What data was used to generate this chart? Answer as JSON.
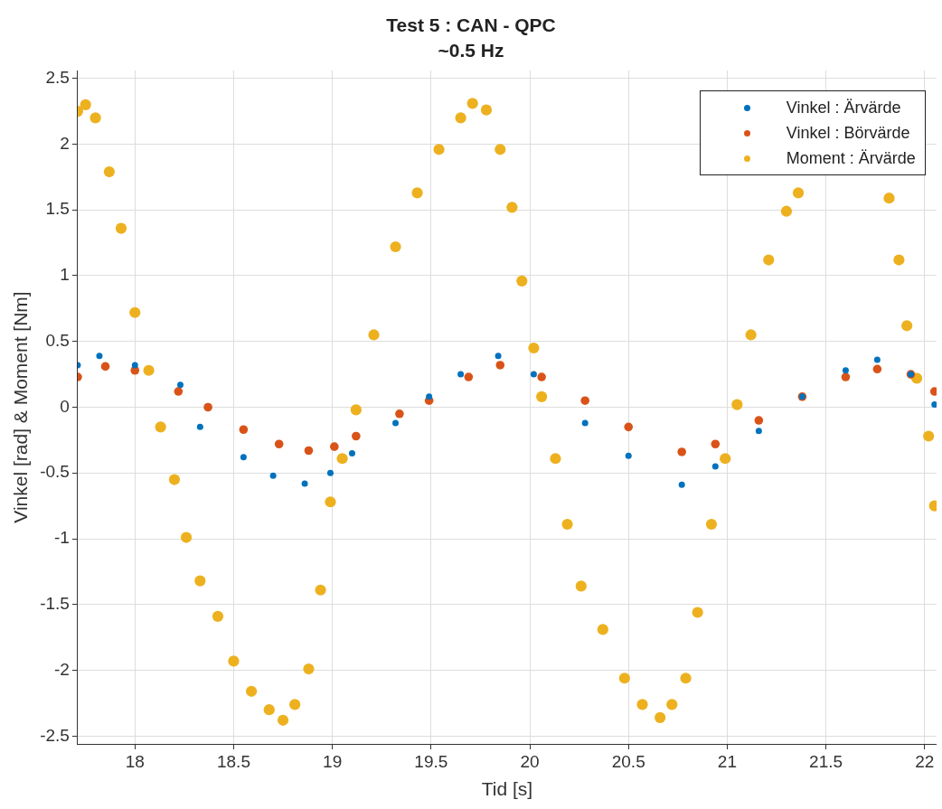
{
  "chart_data": {
    "type": "scatter",
    "title": "Test 5 : CAN - QPC",
    "subtitle": "~0.5 Hz",
    "xlabel": "Tid [s]",
    "ylabel": "Vinkel [rad] & Moment [Nm]",
    "xlim": [
      17.71,
      22.06
    ],
    "xticks": [
      18,
      18.5,
      19,
      19.5,
      20,
      20.5,
      21,
      21.5,
      22
    ],
    "ylim": [
      -2.56,
      2.56
    ],
    "yticks": [
      -2.5,
      -2,
      -1.5,
      -1,
      -0.5,
      0,
      0.5,
      1,
      1.5,
      2,
      2.5
    ],
    "grid": true,
    "legend": "top right",
    "marker": "circle",
    "series": [
      {
        "name": "Vinkel : Ärvärde",
        "color": "#0072bd",
        "x": [
          17.71,
          17.82,
          18.0,
          18.23,
          18.33,
          18.55,
          18.7,
          18.86,
          18.99,
          19.1,
          19.32,
          19.49,
          19.65,
          19.84,
          20.02,
          20.28,
          20.5,
          20.77,
          20.94,
          21.16,
          21.38,
          21.6,
          21.76,
          21.93,
          22.05
        ],
        "values": [
          0.32,
          0.39,
          0.32,
          0.17,
          -0.15,
          -0.38,
          -0.52,
          -0.58,
          -0.5,
          -0.35,
          -0.12,
          0.08,
          0.25,
          0.39,
          0.25,
          -0.12,
          -0.37,
          -0.59,
          -0.45,
          -0.18,
          0.08,
          0.28,
          0.36,
          0.25,
          0.02
        ]
      },
      {
        "name": "Vinkel : Börvärde",
        "color": "#d95319",
        "x": [
          17.71,
          17.85,
          18.0,
          18.22,
          18.37,
          18.55,
          18.73,
          18.88,
          19.01,
          19.12,
          19.34,
          19.49,
          19.69,
          19.85,
          20.06,
          20.28,
          20.5,
          20.77,
          20.94,
          21.16,
          21.38,
          21.6,
          21.76,
          21.93,
          22.05
        ],
        "values": [
          0.23,
          0.31,
          0.28,
          0.12,
          0,
          -0.17,
          -0.28,
          -0.33,
          -0.3,
          -0.22,
          -0.05,
          0.05,
          0.23,
          0.32,
          0.23,
          0.05,
          -0.15,
          -0.34,
          -0.28,
          -0.1,
          0.08,
          0.23,
          0.29,
          0.25,
          0.12
        ]
      },
      {
        "name": "Moment : Ärvärde",
        "color": "#edb120",
        "x": [
          17.71,
          17.75,
          17.8,
          17.87,
          17.93,
          18.0,
          18.07,
          18.13,
          18.2,
          18.26,
          18.33,
          18.42,
          18.5,
          18.59,
          18.68,
          18.75,
          18.81,
          18.88,
          18.94,
          18.99,
          19.05,
          19.12,
          19.21,
          19.32,
          19.43,
          19.54,
          19.65,
          19.71,
          19.78,
          19.85,
          19.91,
          19.96,
          20.02,
          20.06,
          20.13,
          20.19,
          20.26,
          20.37,
          20.48,
          20.57,
          20.66,
          20.72,
          20.79,
          20.85,
          20.92,
          20.99,
          21.05,
          21.12,
          21.21,
          21.3,
          21.36,
          21.82,
          21.87,
          21.91,
          21.96,
          22.02,
          22.05
        ],
        "values": [
          2.25,
          2.3,
          2.2,
          1.79,
          1.36,
          0.72,
          0.28,
          -0.15,
          -0.55,
          -0.99,
          -1.32,
          -1.59,
          -1.93,
          -2.16,
          -2.3,
          -2.38,
          -2.26,
          -1.99,
          -1.39,
          -0.72,
          -0.39,
          -0.02,
          0.55,
          1.22,
          1.63,
          1.96,
          2.2,
          2.31,
          2.26,
          1.96,
          1.52,
          0.96,
          0.45,
          0.08,
          -0.39,
          -0.89,
          -1.36,
          -1.69,
          -2.06,
          -2.26,
          -2.36,
          -2.26,
          -2.06,
          -1.56,
          -0.89,
          -0.39,
          0.02,
          0.55,
          1.12,
          1.49,
          1.63,
          1.59,
          1.12,
          0.62,
          0.22,
          -0.22,
          -0.75
        ]
      }
    ]
  }
}
